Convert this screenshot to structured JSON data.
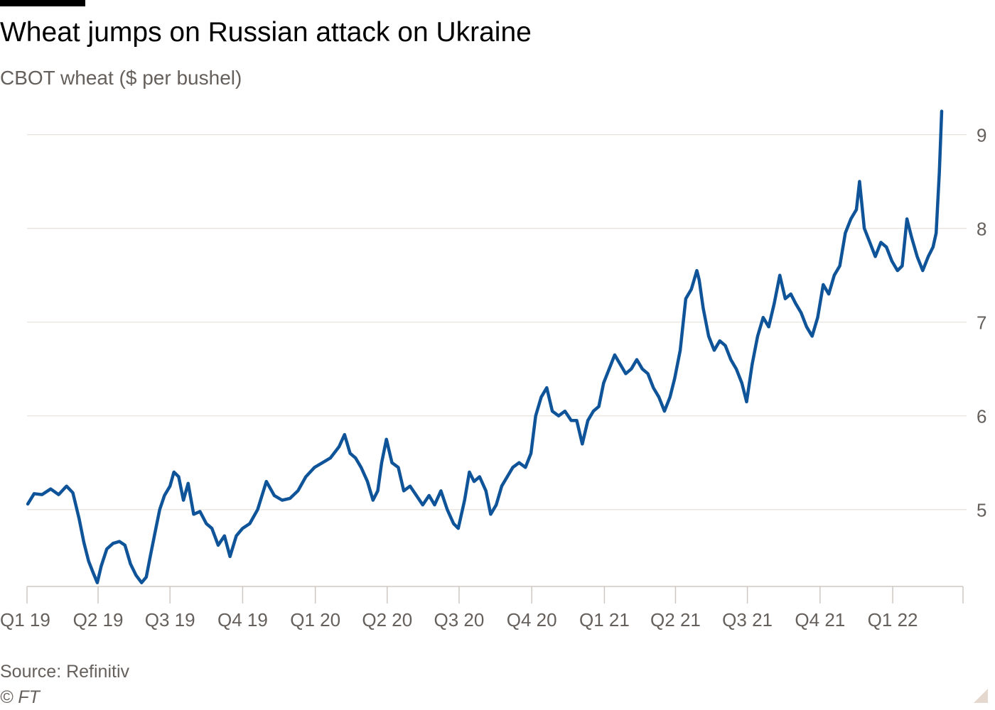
{
  "header": {
    "title": "Wheat jumps on Russian attack on Ukraine",
    "subtitle": "CBOT wheat ($ per bushel)"
  },
  "footer": {
    "source": "Source: Refinitiv",
    "copyright": "© FT"
  },
  "colors": {
    "line": "#0f5499",
    "grid": "#e6e1dc",
    "axis": "#cfc8c2",
    "tick_label": "#66605c"
  },
  "chart_data": {
    "type": "line",
    "title": "Wheat jumps on Russian attack on Ukraine",
    "subtitle": "CBOT wheat ($ per bushel)",
    "xlabel": "",
    "ylabel": "",
    "x_tick_labels": [
      "Q1 19",
      "Q2 19",
      "Q3 19",
      "Q4 19",
      "Q1 20",
      "Q2 20",
      "Q3 20",
      "Q4 20",
      "Q1 21",
      "Q2 21",
      "Q3 21",
      "Q4 21",
      "Q1 22"
    ],
    "x_range": [
      "2019-01-01",
      "2022-03-31"
    ],
    "y_ticks": [
      5,
      6,
      7,
      8,
      9
    ],
    "ylim": [
      4.18,
      9.3
    ],
    "y_axis_side": "right",
    "grid": "horizontal",
    "legend": "none",
    "series": [
      {
        "points": [
          [
            "2019-01-02",
            5.06
          ],
          [
            "2019-01-10",
            5.17
          ],
          [
            "2019-01-20",
            5.16
          ],
          [
            "2019-01-31",
            5.22
          ],
          [
            "2019-02-10",
            5.16
          ],
          [
            "2019-02-20",
            5.25
          ],
          [
            "2019-02-28",
            5.18
          ],
          [
            "2019-03-08",
            4.9
          ],
          [
            "2019-03-14",
            4.65
          ],
          [
            "2019-03-20",
            4.45
          ],
          [
            "2019-03-26",
            4.32
          ],
          [
            "2019-03-31",
            4.22
          ],
          [
            "2019-04-05",
            4.4
          ],
          [
            "2019-04-12",
            4.58
          ],
          [
            "2019-04-20",
            4.64
          ],
          [
            "2019-04-28",
            4.66
          ],
          [
            "2019-05-05",
            4.62
          ],
          [
            "2019-05-12",
            4.42
          ],
          [
            "2019-05-19",
            4.3
          ],
          [
            "2019-05-26",
            4.22
          ],
          [
            "2019-06-01",
            4.28
          ],
          [
            "2019-06-06",
            4.5
          ],
          [
            "2019-06-12",
            4.75
          ],
          [
            "2019-06-18",
            5.0
          ],
          [
            "2019-06-24",
            5.15
          ],
          [
            "2019-07-01",
            5.25
          ],
          [
            "2019-07-06",
            5.4
          ],
          [
            "2019-07-12",
            5.35
          ],
          [
            "2019-07-18",
            5.1
          ],
          [
            "2019-07-24",
            5.28
          ],
          [
            "2019-07-31",
            4.95
          ],
          [
            "2019-08-08",
            4.98
          ],
          [
            "2019-08-16",
            4.85
          ],
          [
            "2019-08-23",
            4.8
          ],
          [
            "2019-08-31",
            4.62
          ],
          [
            "2019-09-08",
            4.72
          ],
          [
            "2019-09-15",
            4.5
          ],
          [
            "2019-09-23",
            4.72
          ],
          [
            "2019-10-01",
            4.8
          ],
          [
            "2019-10-10",
            4.85
          ],
          [
            "2019-10-20",
            5.0
          ],
          [
            "2019-10-31",
            5.3
          ],
          [
            "2019-11-10",
            5.15
          ],
          [
            "2019-11-20",
            5.1
          ],
          [
            "2019-11-30",
            5.12
          ],
          [
            "2019-12-10",
            5.2
          ],
          [
            "2019-12-20",
            5.35
          ],
          [
            "2019-12-31",
            5.45
          ],
          [
            "2020-01-10",
            5.5
          ],
          [
            "2020-01-20",
            5.55
          ],
          [
            "2020-01-31",
            5.67
          ],
          [
            "2020-02-07",
            5.8
          ],
          [
            "2020-02-14",
            5.6
          ],
          [
            "2020-02-21",
            5.55
          ],
          [
            "2020-02-28",
            5.45
          ],
          [
            "2020-03-07",
            5.3
          ],
          [
            "2020-03-14",
            5.1
          ],
          [
            "2020-03-20",
            5.2
          ],
          [
            "2020-03-25",
            5.5
          ],
          [
            "2020-03-31",
            5.75
          ],
          [
            "2020-04-07",
            5.5
          ],
          [
            "2020-04-15",
            5.45
          ],
          [
            "2020-04-22",
            5.2
          ],
          [
            "2020-04-30",
            5.25
          ],
          [
            "2020-05-08",
            5.15
          ],
          [
            "2020-05-16",
            5.05
          ],
          [
            "2020-05-24",
            5.15
          ],
          [
            "2020-05-31",
            5.05
          ],
          [
            "2020-06-08",
            5.2
          ],
          [
            "2020-06-16",
            5.0
          ],
          [
            "2020-06-24",
            4.85
          ],
          [
            "2020-06-30",
            4.8
          ],
          [
            "2020-07-08",
            5.1
          ],
          [
            "2020-07-14",
            5.4
          ],
          [
            "2020-07-20",
            5.3
          ],
          [
            "2020-07-27",
            5.35
          ],
          [
            "2020-08-04",
            5.2
          ],
          [
            "2020-08-10",
            4.95
          ],
          [
            "2020-08-17",
            5.05
          ],
          [
            "2020-08-24",
            5.25
          ],
          [
            "2020-08-31",
            5.35
          ],
          [
            "2020-09-07",
            5.45
          ],
          [
            "2020-09-15",
            5.5
          ],
          [
            "2020-09-23",
            5.45
          ],
          [
            "2020-09-30",
            5.6
          ],
          [
            "2020-10-06",
            6.0
          ],
          [
            "2020-10-13",
            6.2
          ],
          [
            "2020-10-20",
            6.3
          ],
          [
            "2020-10-27",
            6.05
          ],
          [
            "2020-11-04",
            6.0
          ],
          [
            "2020-11-12",
            6.05
          ],
          [
            "2020-11-20",
            5.95
          ],
          [
            "2020-11-27",
            5.95
          ],
          [
            "2020-12-04",
            5.7
          ],
          [
            "2020-12-11",
            5.95
          ],
          [
            "2020-12-18",
            6.05
          ],
          [
            "2020-12-25",
            6.1
          ],
          [
            "2020-12-31",
            6.35
          ],
          [
            "2021-01-07",
            6.5
          ],
          [
            "2021-01-14",
            6.65
          ],
          [
            "2021-01-21",
            6.55
          ],
          [
            "2021-01-28",
            6.45
          ],
          [
            "2021-02-04",
            6.5
          ],
          [
            "2021-02-11",
            6.6
          ],
          [
            "2021-02-18",
            6.5
          ],
          [
            "2021-02-25",
            6.45
          ],
          [
            "2021-03-04",
            6.3
          ],
          [
            "2021-03-11",
            6.2
          ],
          [
            "2021-03-18",
            6.05
          ],
          [
            "2021-03-25",
            6.2
          ],
          [
            "2021-03-31",
            6.4
          ],
          [
            "2021-04-07",
            6.7
          ],
          [
            "2021-04-14",
            7.25
          ],
          [
            "2021-04-21",
            7.35
          ],
          [
            "2021-04-28",
            7.55
          ],
          [
            "2021-05-01",
            7.45
          ],
          [
            "2021-05-06",
            7.15
          ],
          [
            "2021-05-13",
            6.85
          ],
          [
            "2021-05-20",
            6.7
          ],
          [
            "2021-05-27",
            6.8
          ],
          [
            "2021-06-03",
            6.75
          ],
          [
            "2021-06-10",
            6.6
          ],
          [
            "2021-06-17",
            6.5
          ],
          [
            "2021-06-24",
            6.35
          ],
          [
            "2021-06-30",
            6.15
          ],
          [
            "2021-07-07",
            6.55
          ],
          [
            "2021-07-14",
            6.85
          ],
          [
            "2021-07-21",
            7.05
          ],
          [
            "2021-07-28",
            6.95
          ],
          [
            "2021-08-04",
            7.2
          ],
          [
            "2021-08-11",
            7.5
          ],
          [
            "2021-08-18",
            7.25
          ],
          [
            "2021-08-25",
            7.3
          ],
          [
            "2021-08-31",
            7.2
          ],
          [
            "2021-09-07",
            7.1
          ],
          [
            "2021-09-14",
            6.95
          ],
          [
            "2021-09-21",
            6.85
          ],
          [
            "2021-09-28",
            7.05
          ],
          [
            "2021-10-05",
            7.4
          ],
          [
            "2021-10-12",
            7.3
          ],
          [
            "2021-10-19",
            7.5
          ],
          [
            "2021-10-26",
            7.6
          ],
          [
            "2021-11-02",
            7.95
          ],
          [
            "2021-11-09",
            8.1
          ],
          [
            "2021-11-16",
            8.2
          ],
          [
            "2021-11-20",
            8.5
          ],
          [
            "2021-11-26",
            8.0
          ],
          [
            "2021-12-03",
            7.85
          ],
          [
            "2021-12-10",
            7.7
          ],
          [
            "2021-12-17",
            7.85
          ],
          [
            "2021-12-24",
            7.8
          ],
          [
            "2021-12-31",
            7.65
          ],
          [
            "2022-01-07",
            7.55
          ],
          [
            "2022-01-13",
            7.6
          ],
          [
            "2022-01-19",
            8.1
          ],
          [
            "2022-01-25",
            7.9
          ],
          [
            "2022-02-01",
            7.7
          ],
          [
            "2022-02-08",
            7.55
          ],
          [
            "2022-02-15",
            7.7
          ],
          [
            "2022-02-21",
            7.8
          ],
          [
            "2022-02-25",
            7.95
          ],
          [
            "2022-03-01",
            8.6
          ],
          [
            "2022-03-04",
            9.25
          ]
        ]
      }
    ]
  }
}
